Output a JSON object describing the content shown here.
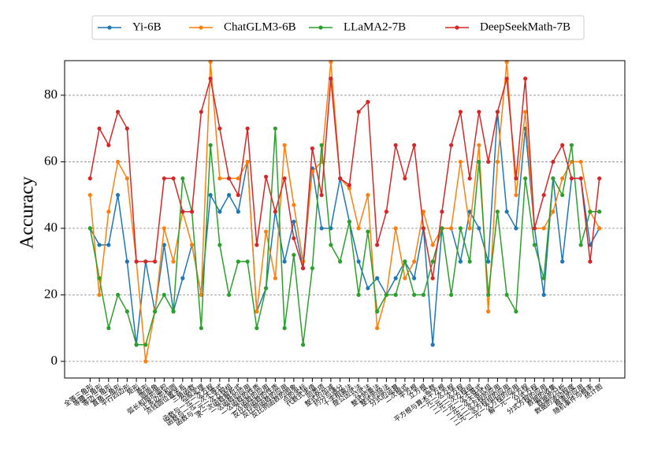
{
  "chart_data": {
    "type": "line",
    "y_label": "Accuracy",
    "categories": [
      "全等三角形",
      "等腰三角形",
      "等边三角形",
      "直角三角形",
      "平行四边形",
      "矩形",
      "菱形",
      "圆周角",
      "弧长和扇形面积",
      "正多边形和圆",
      "点线圆位置关系",
      "三角函数",
      "勾股定理",
      "函数与一元一次方程",
      "函数与一元一次不等式",
      "函数与二元一次方程组",
      "求一次函数解析式",
      "一次函数的应用",
      "二次函数的性质",
      "二次函数的应用",
      "反比例函数的性质",
      "反比例函数的应用",
      "反比例函数的图象",
      "点的坐标",
      "代数式求值",
      "同类项",
      "整式的加减",
      "约分与通分",
      "十字相乘法",
      "提公因式法",
      "公式法",
      "整式的乘法",
      "整式的除法",
      "分式的运算",
      "二次根式",
      "平方根",
      "立方根",
      "实数",
      "平方根与算术平方根",
      "一元一次方程",
      "一元二次方程",
      "二元一次方程组",
      "一元一次不等式",
      "一元一次不等式组",
      "一元二次方程的应用",
      "二元一次方程组的应用",
      "一元一次方程的应用",
      "解一元一次方程",
      "分式方程",
      "分式方程的应用",
      "数据的收集",
      "数据的分析",
      "数据的波动程度",
      "概率的应用",
      "随机事件与概率",
      "统计图"
    ],
    "series": [
      {
        "name": "Yi-6B",
        "color": "#1f77b4",
        "values": [
          40,
          35,
          35,
          50,
          30,
          5,
          30,
          15,
          35,
          15,
          25,
          35,
          20,
          50,
          45,
          50,
          45,
          60,
          15,
          22,
          45,
          30,
          42,
          28,
          58,
          40,
          40,
          55,
          42,
          30,
          22,
          25,
          20,
          25,
          30,
          25,
          40,
          5,
          40,
          40,
          30,
          45,
          40,
          30,
          75,
          45,
          40,
          70,
          40,
          20,
          55,
          30,
          55,
          55,
          35,
          40
        ]
      },
      {
        "name": "ChatGLM3-6B",
        "color": "#ff7f0e",
        "values": [
          50,
          20,
          45,
          60,
          55,
          30,
          0,
          15,
          40,
          30,
          45,
          35,
          20,
          90,
          55,
          55,
          55,
          60,
          15,
          39,
          25,
          65,
          47,
          30,
          57,
          60,
          90,
          55,
          52,
          40,
          50,
          10,
          20,
          40,
          25,
          30,
          45,
          35,
          40,
          40,
          60,
          40,
          65,
          15,
          60,
          90,
          50,
          75,
          40,
          40,
          45,
          55,
          60,
          60,
          45,
          40
        ]
      },
      {
        "name": "LLaMA2-7B",
        "color": "#2ca02c",
        "values": [
          40,
          25,
          10,
          20,
          15,
          5,
          5,
          15,
          20,
          15,
          55,
          45,
          10,
          65,
          35,
          20,
          30,
          30,
          10,
          22,
          70,
          10,
          32,
          5,
          28,
          65,
          35,
          30,
          42,
          20,
          39,
          15,
          20,
          20,
          30,
          20,
          20,
          30,
          40,
          20,
          40,
          30,
          60,
          20,
          45,
          20,
          15,
          55,
          35,
          25,
          55,
          50,
          65,
          35,
          45,
          45
        ]
      },
      {
        "name": "DeepSeekMath-7B",
        "color": "#d62728",
        "values": [
          55,
          70,
          65,
          75,
          70,
          30,
          30,
          30,
          55,
          55,
          45,
          45,
          75,
          85,
          70,
          55,
          50,
          70,
          35,
          55.5,
          45,
          55,
          37,
          28,
          64,
          50,
          85,
          55,
          53,
          75,
          78,
          35,
          45,
          65,
          55,
          65,
          40,
          25,
          45,
          65,
          75,
          55,
          75,
          60,
          75,
          85,
          55,
          85,
          40,
          50,
          60,
          65,
          55,
          55,
          30,
          55
        ]
      }
    ],
    "ylim": [
      -5,
      90.4
    ],
    "yticks": [
      0,
      20,
      40,
      60,
      80
    ],
    "grid": true,
    "legend": "top"
  }
}
